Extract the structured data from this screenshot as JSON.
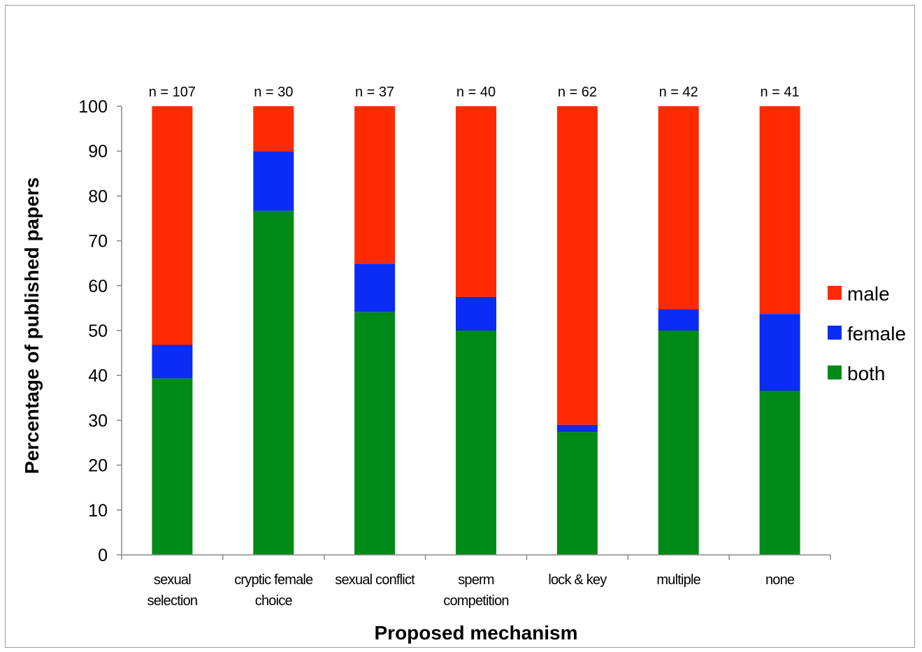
{
  "chart_data": {
    "type": "bar",
    "stacked": true,
    "categories": [
      [
        "sexual",
        "selection"
      ],
      [
        "cryptic female",
        "choice"
      ],
      [
        "sexual conflict"
      ],
      [
        "sperm",
        "competition"
      ],
      [
        "lock & key"
      ],
      [
        "multiple"
      ],
      [
        "none"
      ]
    ],
    "n_labels": [
      "n = 107",
      "n = 30",
      "n = 37",
      "n = 40",
      "n = 62",
      "n = 42",
      "n = 41"
    ],
    "series": [
      {
        "name": "both",
        "color": "#008a17",
        "values": [
          39.3,
          76.7,
          54.1,
          50.0,
          27.4,
          50.0,
          36.6
        ]
      },
      {
        "name": "female",
        "color": "#0a2cf5",
        "values": [
          7.5,
          13.3,
          10.8,
          7.5,
          1.6,
          4.8,
          17.1
        ]
      },
      {
        "name": "male",
        "color": "#ff2a00",
        "values": [
          53.2,
          10.0,
          35.1,
          42.5,
          71.0,
          45.2,
          46.3
        ]
      }
    ],
    "legend_order": [
      "male",
      "female",
      "both"
    ],
    "legend_position": "right",
    "title": "",
    "xlabel": "Proposed mechanism",
    "ylabel": "Percentage of published papers",
    "ylim": [
      0,
      100
    ],
    "yticks": [
      0,
      10,
      20,
      30,
      40,
      50,
      60,
      70,
      80,
      90,
      100
    ],
    "grid": false
  }
}
